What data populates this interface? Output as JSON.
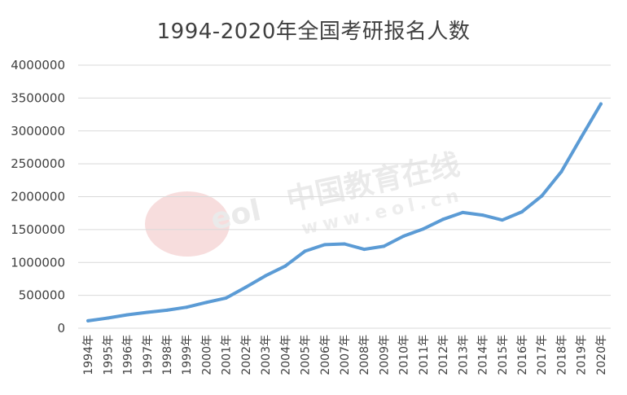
{
  "chart_data": {
    "type": "line",
    "title": "1994-2020年全国考研报名人数",
    "xlabel": "",
    "ylabel": "",
    "ylim": [
      0,
      4000000
    ],
    "yticks": [
      0,
      500000,
      1000000,
      1500000,
      2000000,
      2500000,
      3000000,
      3500000,
      4000000
    ],
    "grid": true,
    "line_color": "#5b9bd5",
    "categories": [
      "1994年",
      "1995年",
      "1996年",
      "1997年",
      "1998年",
      "1999年",
      "2000年",
      "2001年",
      "2002年",
      "2003年",
      "2004年",
      "2005年",
      "2006年",
      "2007年",
      "2008年",
      "2009年",
      "2010年",
      "2011年",
      "2012年",
      "2013年",
      "2014年",
      "2015年",
      "2016年",
      "2017年",
      "2018年",
      "2019年",
      "2020年"
    ],
    "series": [
      {
        "values": [
          113000,
          155000,
          204000,
          242000,
          274000,
          319000,
          392000,
          460000,
          624000,
          797000,
          945000,
          1172000,
          1270000,
          1282000,
          1200000,
          1246000,
          1400000,
          1510000,
          1656000,
          1760000,
          1720000,
          1645000,
          1770000,
          2010000,
          2380000,
          2900000,
          3410000
        ]
      }
    ]
  },
  "watermark": {
    "brand": "中国教育在线",
    "url": "www.eol.cn",
    "logo_text": "eol"
  }
}
